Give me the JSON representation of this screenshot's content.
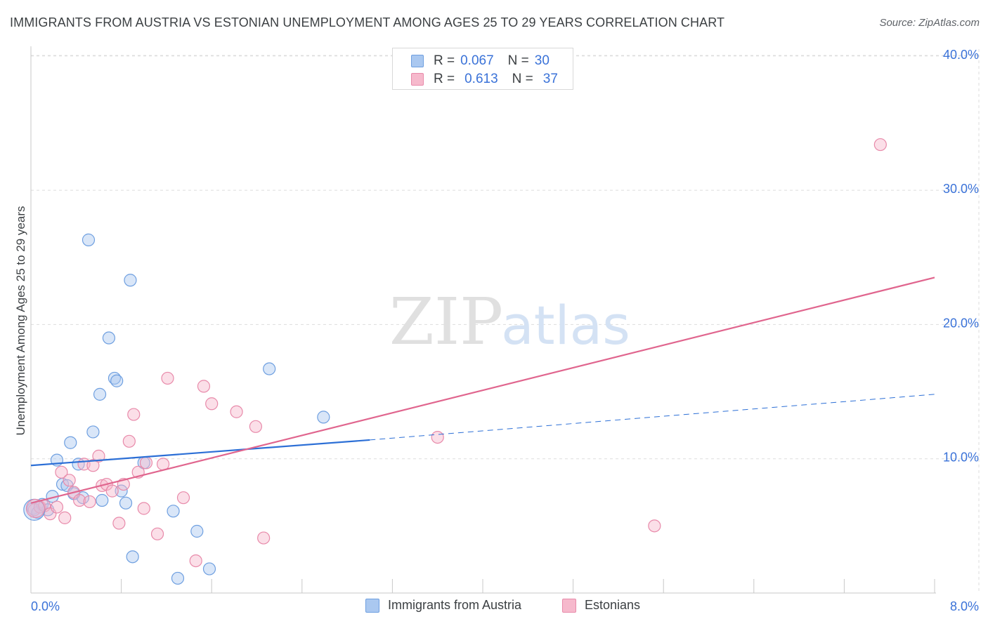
{
  "header": {
    "title": "IMMIGRANTS FROM AUSTRIA VS ESTONIAN UNEMPLOYMENT AMONG AGES 25 TO 29 YEARS CORRELATION CHART",
    "source": "Source: ZipAtlas.com"
  },
  "watermark": {
    "zip": "ZIP",
    "atlas": "atlas"
  },
  "legend": {
    "rows": [
      {
        "r_label": "R =",
        "r_value": "0.067",
        "n_label": "N =",
        "n_value": "30"
      },
      {
        "r_label": "R =",
        "r_value": "0.613",
        "n_label": "N =",
        "n_value": "37"
      }
    ]
  },
  "bottom_legend": {
    "items": [
      {
        "label": "Immigrants from Austria"
      },
      {
        "label": "Estonians"
      }
    ]
  },
  "colors": {
    "blue_fill": "#aac8f0",
    "blue_stroke": "#6e9fe0",
    "blue_line": "#2c6fd6",
    "pink_fill": "#f6b9cc",
    "pink_stroke": "#e88aaa",
    "pink_line": "#e0658e",
    "tick_text": "#3a72d8",
    "grid": "#dddddd"
  },
  "chart_data": {
    "type": "scatter",
    "title": "IMMIGRANTS FROM AUSTRIA VS ESTONIAN UNEMPLOYMENT AMONG AGES 25 TO 29 YEARS CORRELATION CHART",
    "xlabel": "",
    "ylabel": "Unemployment Among Ages 25 to 29 years",
    "xlim": [
      0,
      8
    ],
    "ylim": [
      0,
      40.5
    ],
    "x_tick_labels": [
      "0.0%",
      "8.0%"
    ],
    "y_ticks": [
      10,
      20,
      30,
      40
    ],
    "y_tick_labels": [
      "10.0%",
      "20.0%",
      "30.0%",
      "40.0%"
    ],
    "grid": true,
    "series": [
      {
        "name": "Immigrants from Austria",
        "r": 0.067,
        "n": 30,
        "points": [
          [
            0.02,
            6.3
          ],
          [
            0.06,
            6.0
          ],
          [
            0.1,
            6.6
          ],
          [
            0.15,
            6.2
          ],
          [
            0.19,
            7.2
          ],
          [
            0.23,
            9.9
          ],
          [
            0.28,
            8.1
          ],
          [
            0.32,
            8.0
          ],
          [
            0.35,
            11.2
          ],
          [
            0.38,
            7.4
          ],
          [
            0.42,
            9.6
          ],
          [
            0.46,
            7.1
          ],
          [
            0.51,
            26.3
          ],
          [
            0.55,
            12.0
          ],
          [
            0.61,
            14.8
          ],
          [
            0.63,
            6.9
          ],
          [
            0.74,
            16.0
          ],
          [
            0.76,
            15.8
          ],
          [
            0.8,
            7.6
          ],
          [
            0.84,
            6.7
          ],
          [
            0.88,
            23.3
          ],
          [
            0.9,
            2.7
          ],
          [
            1.0,
            9.7
          ],
          [
            1.26,
            6.1
          ],
          [
            1.3,
            1.1
          ],
          [
            1.47,
            4.6
          ],
          [
            1.58,
            1.8
          ],
          [
            2.11,
            16.7
          ],
          [
            2.59,
            13.1
          ],
          [
            0.69,
            19.0
          ]
        ],
        "trend_solid": {
          "x": [
            0,
            3.0
          ],
          "y": [
            9.5,
            11.4
          ]
        },
        "trend_dashed": {
          "x": [
            3.0,
            8.0
          ],
          "y": [
            11.4,
            14.8
          ]
        }
      },
      {
        "name": "Estonians",
        "r": 0.613,
        "n": 37,
        "points": [
          [
            0.03,
            6.2
          ],
          [
            0.08,
            6.4
          ],
          [
            0.12,
            6.5
          ],
          [
            0.17,
            5.9
          ],
          [
            0.23,
            6.4
          ],
          [
            0.27,
            9.0
          ],
          [
            0.3,
            5.6
          ],
          [
            0.34,
            8.4
          ],
          [
            0.38,
            7.5
          ],
          [
            0.43,
            6.9
          ],
          [
            0.47,
            9.6
          ],
          [
            0.52,
            6.8
          ],
          [
            0.55,
            9.5
          ],
          [
            0.6,
            10.2
          ],
          [
            0.63,
            8.0
          ],
          [
            0.67,
            8.1
          ],
          [
            0.72,
            7.6
          ],
          [
            0.78,
            5.2
          ],
          [
            0.82,
            8.1
          ],
          [
            0.87,
            11.3
          ],
          [
            0.91,
            13.3
          ],
          [
            0.95,
            9.0
          ],
          [
            1.0,
            6.3
          ],
          [
            1.12,
            4.4
          ],
          [
            1.17,
            9.6
          ],
          [
            1.21,
            16.0
          ],
          [
            1.35,
            7.1
          ],
          [
            1.46,
            2.4
          ],
          [
            1.53,
            15.4
          ],
          [
            1.6,
            14.1
          ],
          [
            1.82,
            13.5
          ],
          [
            1.99,
            12.4
          ],
          [
            2.06,
            4.1
          ],
          [
            3.6,
            11.6
          ],
          [
            5.52,
            5.0
          ],
          [
            7.52,
            33.4
          ],
          [
            1.02,
            9.7
          ]
        ],
        "trend_solid": {
          "x": [
            0,
            8.0
          ],
          "y": [
            6.7,
            23.5
          ]
        }
      }
    ]
  }
}
